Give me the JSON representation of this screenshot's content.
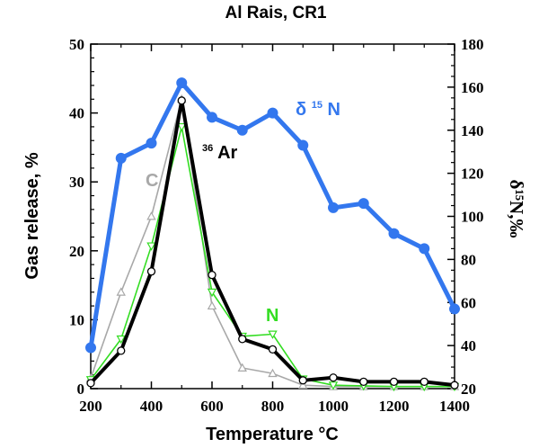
{
  "chart_data": {
    "type": "line",
    "title": "Al Rais, CR1",
    "xlabel": "Temperature °C",
    "ylabel": "Gas release, %",
    "ylabel_right": "δ¹⁵N,‰",
    "xlim": [
      200,
      1400
    ],
    "ylim": [
      0,
      50
    ],
    "ylim_right": [
      20,
      180
    ],
    "xticks": [
      200,
      400,
      600,
      800,
      1000,
      1200,
      1400
    ],
    "yticks": [
      0,
      10,
      20,
      30,
      40,
      50
    ],
    "yticks_right": [
      20,
      40,
      60,
      80,
      100,
      120,
      140,
      160,
      180
    ],
    "grid": false,
    "legend": "none",
    "series": [
      {
        "name": "C",
        "axis": "left",
        "color": "#a8a8a8",
        "marker": "triangle-up",
        "x": [
          200,
          300,
          400,
          500,
          600,
          700,
          800,
          900,
          1000,
          1100,
          1200,
          1300,
          1400
        ],
        "y": [
          1.5,
          14,
          25,
          42,
          12,
          3,
          2.2,
          0.5,
          0.3,
          0.3,
          0.3,
          0.3,
          0.3
        ]
      },
      {
        "name": "N",
        "axis": "left",
        "color": "#33dd22",
        "marker": "triangle-down",
        "x": [
          200,
          300,
          400,
          500,
          600,
          700,
          800,
          900,
          1000,
          1100,
          1200,
          1300,
          1400
        ],
        "y": [
          1.3,
          7.2,
          20.7,
          38,
          14,
          7.6,
          7.9,
          1.4,
          0.5,
          0.4,
          0.3,
          0.3,
          0.3
        ]
      },
      {
        "name": "36Ar",
        "axis": "left",
        "color": "#000000",
        "marker": "circle-open",
        "x": [
          200,
          300,
          400,
          500,
          600,
          700,
          800,
          900,
          1000,
          1100,
          1200,
          1300,
          1400
        ],
        "y": [
          0.8,
          5.5,
          17,
          41.8,
          16.5,
          7.2,
          5.7,
          1.2,
          1.6,
          1.0,
          1.0,
          1.0,
          0.5
        ]
      },
      {
        "name": "δ¹⁵N",
        "axis": "right",
        "color": "#3377ee",
        "marker": "circle-filled",
        "x": [
          200,
          300,
          400,
          500,
          600,
          700,
          800,
          900,
          1000,
          1100,
          1200,
          1300,
          1400
        ],
        "y": [
          39,
          127,
          134,
          162,
          146,
          140,
          148,
          133,
          104,
          106,
          92,
          85,
          57
        ]
      }
    ],
    "annotations": {
      "C": {
        "base": "C",
        "sup": ""
      },
      "N": {
        "base": "N",
        "sup": ""
      },
      "ar": {
        "base": "Ar",
        "sup": "36"
      },
      "d15n": {
        "base": "δ",
        "sup": "15",
        "tail": "N"
      }
    }
  }
}
